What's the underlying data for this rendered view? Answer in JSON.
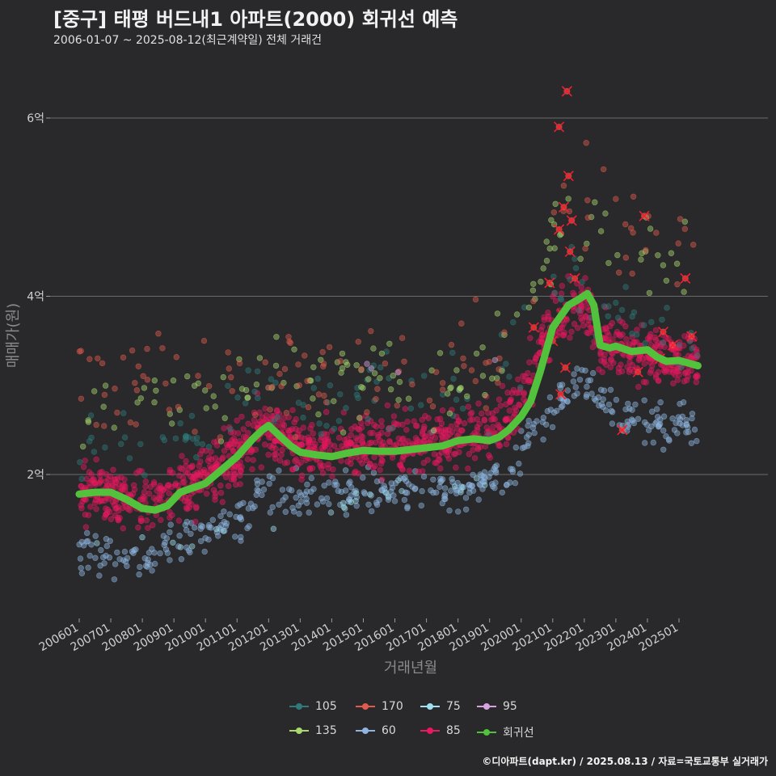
{
  "chart_data": {
    "type": "scatter",
    "title": "[중구] 태평 버드내1 아파트(2000) 회귀선 예측",
    "subtitle": "2006-01-07 ~ 2025-08-12(최근계약일) 전체 거래건",
    "xlabel": "거래년월",
    "ylabel": "매매가(원)",
    "ylim": [
      0.75,
      6.5
    ],
    "y_unit": "억",
    "y_ticks": [
      {
        "value": 2,
        "label": "2억"
      },
      {
        "value": 4,
        "label": "4억"
      },
      {
        "value": 6,
        "label": "6억"
      }
    ],
    "x_range": [
      2006.0,
      2025.7
    ],
    "x_ticks": [
      {
        "value": 2006.0,
        "label": "200601"
      },
      {
        "value": 2007.0,
        "label": "200701"
      },
      {
        "value": 2008.0,
        "label": "200801"
      },
      {
        "value": 2009.0,
        "label": "200901"
      },
      {
        "value": 2010.0,
        "label": "201001"
      },
      {
        "value": 2011.0,
        "label": "201101"
      },
      {
        "value": 2012.0,
        "label": "201201"
      },
      {
        "value": 2013.0,
        "label": "201301"
      },
      {
        "value": 2014.0,
        "label": "201401"
      },
      {
        "value": 2015.0,
        "label": "201501"
      },
      {
        "value": 2016.0,
        "label": "201601"
      },
      {
        "value": 2017.0,
        "label": "201701"
      },
      {
        "value": 2018.0,
        "label": "201801"
      },
      {
        "value": 2019.0,
        "label": "201901"
      },
      {
        "value": 2020.0,
        "label": "202001"
      },
      {
        "value": 2021.0,
        "label": "202101"
      },
      {
        "value": 2022.0,
        "label": "202201"
      },
      {
        "value": 2023.0,
        "label": "202301"
      },
      {
        "value": 2024.0,
        "label": "202401"
      },
      {
        "value": 2025.0,
        "label": "202501"
      }
    ],
    "series": [
      {
        "name": "60",
        "color": "#8fb5e0",
        "band": [
          [
            2006.0,
            1.15
          ],
          [
            2008.0,
            1.05
          ],
          [
            2009.0,
            1.2
          ],
          [
            2010.0,
            1.35
          ],
          [
            2011.0,
            1.5
          ],
          [
            2012.0,
            1.78
          ],
          [
            2013.0,
            1.75
          ],
          [
            2015.0,
            1.8
          ],
          [
            2018.0,
            1.85
          ],
          [
            2019.7,
            1.95
          ],
          [
            2020.3,
            2.55
          ],
          [
            2021.0,
            2.8
          ],
          [
            2022.0,
            3.1
          ],
          [
            2023.0,
            2.7
          ],
          [
            2025.6,
            2.5
          ]
        ],
        "spread": 0.12,
        "count": 420
      },
      {
        "name": "85",
        "color": "#e8195f",
        "band": [
          [
            2006.0,
            1.8
          ],
          [
            2008.0,
            1.7
          ],
          [
            2009.0,
            1.75
          ],
          [
            2010.0,
            1.95
          ],
          [
            2011.0,
            2.25
          ],
          [
            2012.0,
            2.55
          ],
          [
            2013.0,
            2.3
          ],
          [
            2015.0,
            2.3
          ],
          [
            2018.0,
            2.4
          ],
          [
            2019.5,
            2.55
          ],
          [
            2020.3,
            3.1
          ],
          [
            2021.0,
            3.75
          ],
          [
            2022.0,
            3.95
          ],
          [
            2022.5,
            3.5
          ],
          [
            2024.0,
            3.35
          ],
          [
            2025.6,
            3.25
          ]
        ],
        "spread": 0.16,
        "count": 1300
      },
      {
        "name": "105",
        "color": "#2e7b7a",
        "band": [
          [
            2006.0,
            2.4
          ],
          [
            2008.0,
            2.35
          ],
          [
            2010.0,
            2.5
          ],
          [
            2012.0,
            2.9
          ],
          [
            2015.0,
            2.8
          ],
          [
            2019.0,
            2.9
          ],
          [
            2020.5,
            3.9
          ],
          [
            2021.5,
            4.2
          ],
          [
            2023.0,
            3.7
          ],
          [
            2025.6,
            3.6
          ]
        ],
        "spread": 0.25,
        "count": 130
      },
      {
        "name": "135",
        "color": "#a8d86e",
        "band": [
          [
            2006.0,
            2.8
          ],
          [
            2008.0,
            2.7
          ],
          [
            2010.0,
            2.8
          ],
          [
            2012.0,
            3.1
          ],
          [
            2015.0,
            3.0
          ],
          [
            2019.0,
            3.1
          ],
          [
            2020.5,
            4.3
          ],
          [
            2021.5,
            5.0
          ],
          [
            2023.0,
            4.6
          ],
          [
            2025.6,
            4.2
          ]
        ],
        "spread": 0.25,
        "count": 130
      },
      {
        "name": "170",
        "color": "#e05a4e",
        "band": [
          [
            2006.0,
            3.1
          ],
          [
            2008.0,
            2.9
          ],
          [
            2010.0,
            3.0
          ],
          [
            2012.0,
            3.25
          ],
          [
            2015.0,
            3.1
          ],
          [
            2019.0,
            3.15
          ],
          [
            2020.5,
            4.2
          ],
          [
            2021.5,
            5.3
          ],
          [
            2023.0,
            4.8
          ],
          [
            2025.6,
            4.5
          ]
        ],
        "spread": 0.3,
        "count": 120
      },
      {
        "name": "75",
        "color": "#9fe0f0",
        "band": [
          [
            2006.0,
            1.2
          ],
          [
            2010.0,
            1.3
          ],
          [
            2015.0,
            1.75
          ],
          [
            2020.0,
            1.9
          ]
        ],
        "spread": 0.06,
        "count": 25
      },
      {
        "name": "95",
        "color": "#d6a3e0",
        "band": [
          [
            2015.0,
            3.2
          ],
          [
            2020.0,
            3.3
          ]
        ],
        "spread": 0.05,
        "count": 4
      }
    ],
    "regression": {
      "name": "회귀선",
      "color": "#52c23c",
      "x": [
        2006.0,
        2006.5,
        2007.0,
        2007.5,
        2008.0,
        2008.4,
        2008.8,
        2009.2,
        2009.6,
        2010.0,
        2010.5,
        2011.0,
        2011.5,
        2011.8,
        2012.0,
        2012.3,
        2012.7,
        2013.0,
        2013.5,
        2014.0,
        2014.5,
        2015.0,
        2015.5,
        2016.0,
        2016.5,
        2017.0,
        2017.5,
        2018.0,
        2018.5,
        2019.0,
        2019.3,
        2019.6,
        2020.0,
        2020.3,
        2020.6,
        2021.0,
        2021.5,
        2021.8,
        2022.1,
        2022.3,
        2022.5,
        2022.8,
        2023.0,
        2023.5,
        2024.0,
        2024.3,
        2024.6,
        2025.0,
        2025.3,
        2025.6
      ],
      "y": [
        1.78,
        1.8,
        1.8,
        1.72,
        1.62,
        1.6,
        1.65,
        1.8,
        1.85,
        1.9,
        2.05,
        2.2,
        2.4,
        2.5,
        2.55,
        2.45,
        2.32,
        2.25,
        2.22,
        2.2,
        2.24,
        2.27,
        2.26,
        2.26,
        2.28,
        2.3,
        2.32,
        2.38,
        2.4,
        2.38,
        2.42,
        2.5,
        2.65,
        2.82,
        3.15,
        3.65,
        3.9,
        3.96,
        4.03,
        3.9,
        3.45,
        3.42,
        3.44,
        3.38,
        3.4,
        3.32,
        3.27,
        3.28,
        3.25,
        3.22
      ]
    },
    "outliers": [
      {
        "x": 2020.4,
        "y": 3.65
      },
      {
        "x": 2020.9,
        "y": 4.15
      },
      {
        "x": 2021.0,
        "y": 3.5
      },
      {
        "x": 2021.2,
        "y": 4.75
      },
      {
        "x": 2021.3,
        "y": 3.8
      },
      {
        "x": 2021.4,
        "y": 3.2
      },
      {
        "x": 2021.45,
        "y": 6.3
      },
      {
        "x": 2021.5,
        "y": 5.35
      },
      {
        "x": 2021.55,
        "y": 4.5
      },
      {
        "x": 2021.6,
        "y": 4.85
      },
      {
        "x": 2021.2,
        "y": 5.9
      },
      {
        "x": 2021.35,
        "y": 5.0
      },
      {
        "x": 2021.7,
        "y": 4.2
      },
      {
        "x": 2021.25,
        "y": 2.9
      },
      {
        "x": 2023.7,
        "y": 3.15
      },
      {
        "x": 2023.9,
        "y": 4.9
      },
      {
        "x": 2024.5,
        "y": 3.6
      },
      {
        "x": 2024.8,
        "y": 3.45
      },
      {
        "x": 2024.4,
        "y": 3.3
      },
      {
        "x": 2025.2,
        "y": 4.2
      },
      {
        "x": 2025.4,
        "y": 3.55
      },
      {
        "x": 2023.2,
        "y": 2.5
      }
    ],
    "legend_position": "bottom"
  },
  "legend": {
    "items": [
      {
        "label": "105",
        "color": "#2e7b7a"
      },
      {
        "label": "170",
        "color": "#e05a4e"
      },
      {
        "label": "75",
        "color": "#9fe0f0"
      },
      {
        "label": "95",
        "color": "#d6a3e0"
      },
      {
        "label": "135",
        "color": "#a8d86e"
      },
      {
        "label": "60",
        "color": "#8fb5e0"
      },
      {
        "label": "85",
        "color": "#e8195f"
      },
      {
        "label": "회귀선",
        "color": "#52c23c"
      }
    ]
  },
  "credit": "©디아파트(dapt.kr) / 2025.08.13 / 자료=국토교통부 실거래가",
  "colors": {
    "background": "#29292b",
    "grid": "#6a6a6a",
    "text": "#e8e8e8"
  }
}
